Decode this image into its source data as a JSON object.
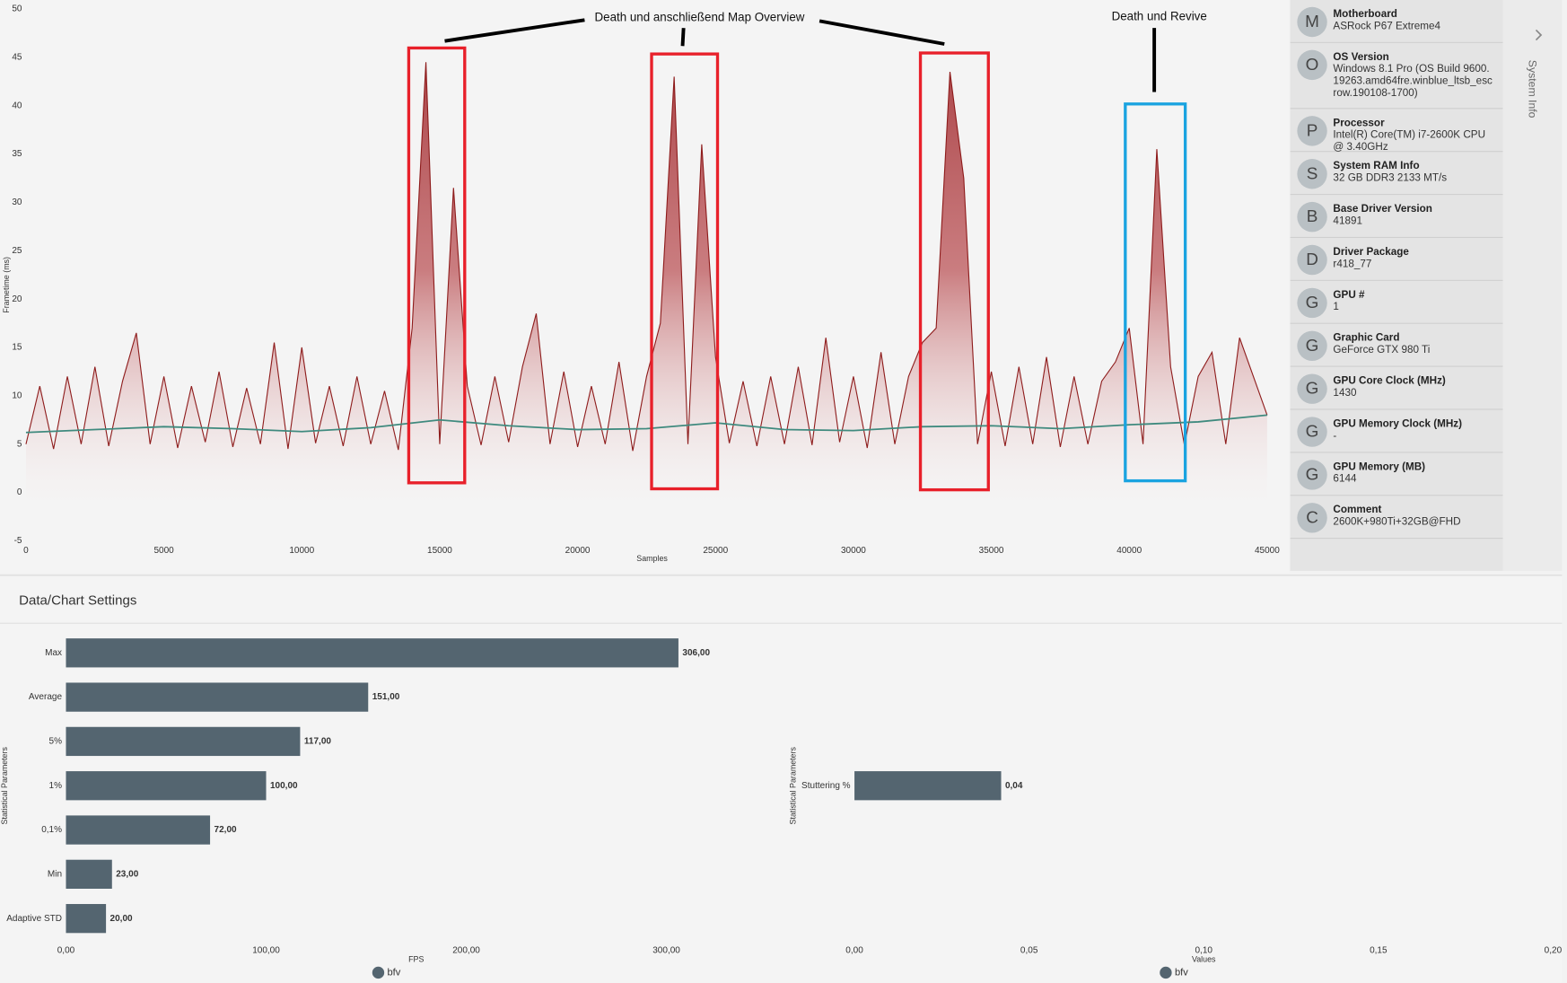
{
  "chart_data": [
    {
      "type": "line",
      "y_label": "Frametime (ms)",
      "x_label": "Samples",
      "annotations": [
        "Death und anschließend Map Overview",
        "Death und Revive"
      ],
      "xlim": [
        0,
        45400
      ],
      "ylim": [
        -5,
        50
      ],
      "xticks": [
        0,
        5000,
        10000,
        15000,
        20000,
        25000,
        30000,
        35000,
        40000,
        45000
      ],
      "yticks": [
        -5,
        0,
        5,
        10,
        15,
        20,
        25,
        30,
        35,
        40,
        45,
        50
      ],
      "grid": false,
      "series": [
        {
          "color": "#8e1c1c",
          "x": [
            0,
            500,
            1000,
            1500,
            2000,
            2500,
            3000,
            3500,
            4000,
            4500,
            5000,
            5500,
            6000,
            6500,
            7000,
            7500,
            8000,
            8500,
            9000,
            9500,
            10000,
            10500,
            11000,
            11500,
            12000,
            12500,
            13000,
            13500,
            14000,
            14500,
            15000,
            15500,
            16000,
            16500,
            17000,
            17500,
            18000,
            18500,
            19000,
            19500,
            20000,
            20500,
            21000,
            21500,
            22000,
            22500,
            23000,
            23500,
            24000,
            24500,
            25000,
            25500,
            26000,
            26500,
            27000,
            27500,
            28000,
            28500,
            29000,
            29500,
            30000,
            30500,
            31000,
            31500,
            32000,
            32500,
            33000,
            33500,
            34000,
            34500,
            35000,
            35500,
            36000,
            36500,
            37000,
            37500,
            38000,
            38500,
            39000,
            39500,
            40000,
            40500,
            41000,
            41500,
            42000,
            42500,
            43000,
            43500,
            44000,
            44500,
            45000
          ],
          "values": [
            5,
            11,
            4.5,
            12,
            5,
            13,
            4.8,
            11.5,
            16.5,
            5,
            12,
            4.6,
            11,
            5.2,
            12.5,
            4.7,
            10.8,
            5,
            15.5,
            4.5,
            15,
            5.1,
            11,
            4.8,
            12,
            5,
            10.5,
            4.4,
            17,
            44.5,
            5,
            31.5,
            11,
            4.9,
            12,
            5.2,
            13,
            18.5,
            5,
            12.5,
            4.7,
            11,
            5,
            13.5,
            4.3,
            12,
            17.5,
            43,
            5,
            36,
            14,
            5.1,
            11.5,
            4.8,
            12,
            5,
            13,
            4.9,
            16,
            5.2,
            12,
            4.6,
            14.5,
            5,
            12,
            15.5,
            17,
            43.5,
            32.5,
            5,
            12.5,
            4.8,
            13,
            5,
            14,
            4.7,
            12,
            5,
            11.5,
            13.5,
            17,
            5,
            35.5,
            13,
            4.9,
            12,
            14.5,
            5,
            16,
            12,
            8
          ]
        },
        {
          "color": "#3f8a7e",
          "x": [
            0,
            2500,
            5000,
            7500,
            10000,
            12500,
            15000,
            17500,
            20000,
            22500,
            25000,
            27500,
            30000,
            32500,
            35000,
            37500,
            40000,
            42500,
            45000
          ],
          "values": [
            6.2,
            6.5,
            6.8,
            6.6,
            6.3,
            6.7,
            7.5,
            6.9,
            6.5,
            6.6,
            7.2,
            6.5,
            6.4,
            6.8,
            6.9,
            6.6,
            7.0,
            7.3,
            8.0
          ]
        }
      ]
    },
    {
      "type": "bar",
      "orientation": "horizontal",
      "y_label": "Statistical Parameters",
      "x_label": "FPS",
      "categories": [
        "Max",
        "Average",
        "5%",
        "1%",
        "0,1%",
        "Min",
        "Adaptive STD"
      ],
      "series": [
        {
          "name": "bfv",
          "color": "#546570",
          "values": [
            306,
            151,
            117,
            100,
            72,
            23,
            20
          ],
          "value_labels": [
            "306,00",
            "151,00",
            "117,00",
            "100,00",
            "72,00",
            "23,00",
            "20,00"
          ]
        }
      ],
      "xlim": [
        0,
        350
      ],
      "xticks": [
        {
          "value": 0,
          "label": "0,00"
        },
        {
          "value": 100,
          "label": "100,00"
        },
        {
          "value": 200,
          "label": "200,00"
        },
        {
          "value": 300,
          "label": "300,00"
        }
      ]
    },
    {
      "type": "bar",
      "orientation": "horizontal",
      "y_label": "Statistical Parameters",
      "x_label": "Values",
      "categories": [
        "Stuttering %"
      ],
      "series": [
        {
          "name": "bfv",
          "color": "#546570",
          "values": [
            0.042
          ],
          "value_labels": [
            "0,04"
          ]
        }
      ],
      "xlim": [
        0,
        0.2
      ],
      "xticks": [
        {
          "value": 0,
          "label": "0,00"
        },
        {
          "value": 0.05,
          "label": "0,05"
        },
        {
          "value": 0.1,
          "label": "0,10"
        },
        {
          "value": 0.15,
          "label": "0,15"
        },
        {
          "value": 0.2,
          "label": "0,20"
        }
      ]
    }
  ],
  "system_info": {
    "tab": "System Info",
    "items": [
      {
        "initial": "M",
        "label": "Motherboard",
        "value": "ASRock P67 Extreme4"
      },
      {
        "initial": "O",
        "label": "OS Version",
        "value": "Windows 8.1 Pro  (OS Build 9600.19263.amd64fre.winblue_ltsb_escrow.190108-1700)"
      },
      {
        "initial": "P",
        "label": "Processor",
        "value": "Intel(R) Core(TM) i7-2600K CPU @ 3.40GHz"
      },
      {
        "initial": "S",
        "label": "System RAM Info",
        "value": "32 GB DDR3 2133 MT/s"
      },
      {
        "initial": "B",
        "label": "Base Driver Version",
        "value": "41891"
      },
      {
        "initial": "D",
        "label": "Driver Package",
        "value": "r418_77"
      },
      {
        "initial": "G",
        "label": "GPU #",
        "value": "1"
      },
      {
        "initial": "G",
        "label": "Graphic Card",
        "value": "GeForce GTX 980 Ti"
      },
      {
        "initial": "G",
        "label": "GPU Core Clock (MHz)",
        "value": "1430"
      },
      {
        "initial": "G",
        "label": "GPU Memory Clock (MHz)",
        "value": "-"
      },
      {
        "initial": "G",
        "label": "GPU Memory (MB)",
        "value": "6144"
      },
      {
        "initial": "C",
        "label": "Comment",
        "value": "2600K+980Ti+32GB@FHD"
      }
    ]
  },
  "settings_title": "Data/Chart Settings"
}
